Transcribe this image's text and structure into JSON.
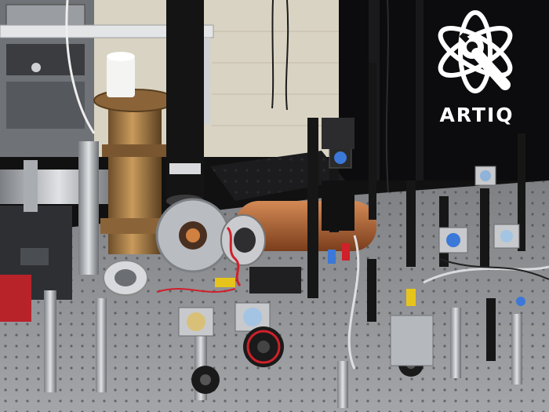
{
  "logo": {
    "wordmark": "ARTIQ",
    "icon": "atom-wrench-icon",
    "color": "#ffffff"
  },
  "colors": {
    "table": "#8f9092",
    "wall": "#d9d3c3",
    "curtain": "#0c0c0e",
    "brass": "#a57d4a",
    "copper": "#b0643a",
    "black_post": "#161616",
    "steel": "#b9bcc0",
    "accent_red": "#d0202a",
    "accent_yellow": "#e7c41c",
    "accent_blue": "#3b78d8"
  }
}
